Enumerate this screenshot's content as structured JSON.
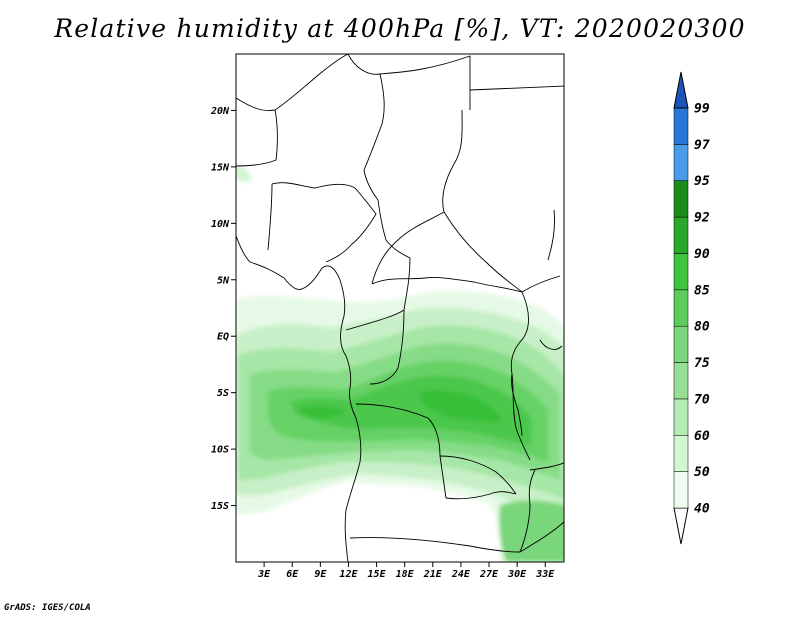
{
  "title": "Relative humidity at 400hPa [%], VT: 2020020300",
  "credit": "GrADS: IGES/COLA",
  "map": {
    "lon_range": [
      0,
      35
    ],
    "lat_range": [
      -20,
      25
    ],
    "lat_ticks": [
      {
        "value": 20,
        "label": "20N"
      },
      {
        "value": 15,
        "label": "15N"
      },
      {
        "value": 10,
        "label": "10N"
      },
      {
        "value": 5,
        "label": "5N"
      },
      {
        "value": 0,
        "label": "EQ"
      },
      {
        "value": -5,
        "label": "5S"
      },
      {
        "value": -10,
        "label": "10S"
      },
      {
        "value": -15,
        "label": "15S"
      }
    ],
    "lon_ticks": [
      {
        "value": 3,
        "label": "3E"
      },
      {
        "value": 6,
        "label": "6E"
      },
      {
        "value": 9,
        "label": "9E"
      },
      {
        "value": 12,
        "label": "12E"
      },
      {
        "value": 15,
        "label": "15E"
      },
      {
        "value": 18,
        "label": "18E"
      },
      {
        "value": 21,
        "label": "21E"
      },
      {
        "value": 24,
        "label": "24E"
      },
      {
        "value": 27,
        "label": "27E"
      },
      {
        "value": 30,
        "label": "30E"
      },
      {
        "value": 33,
        "label": "33E"
      }
    ]
  },
  "colorbar": {
    "levels": [
      "40",
      "50",
      "60",
      "70",
      "75",
      "80",
      "85",
      "90",
      "92",
      "95",
      "97",
      "99"
    ],
    "colors": [
      "#f0fcf0",
      "#d2f5d2",
      "#b4ecb4",
      "#96e096",
      "#7ad67a",
      "#5ccd5c",
      "#3fc43f",
      "#2aa82a",
      "#1a8c1a",
      "#4a9be8",
      "#2a76d6",
      "#1f5fc4"
    ],
    "low_end_color": "#ffffff",
    "high_end_color": "#1a56b8"
  }
}
